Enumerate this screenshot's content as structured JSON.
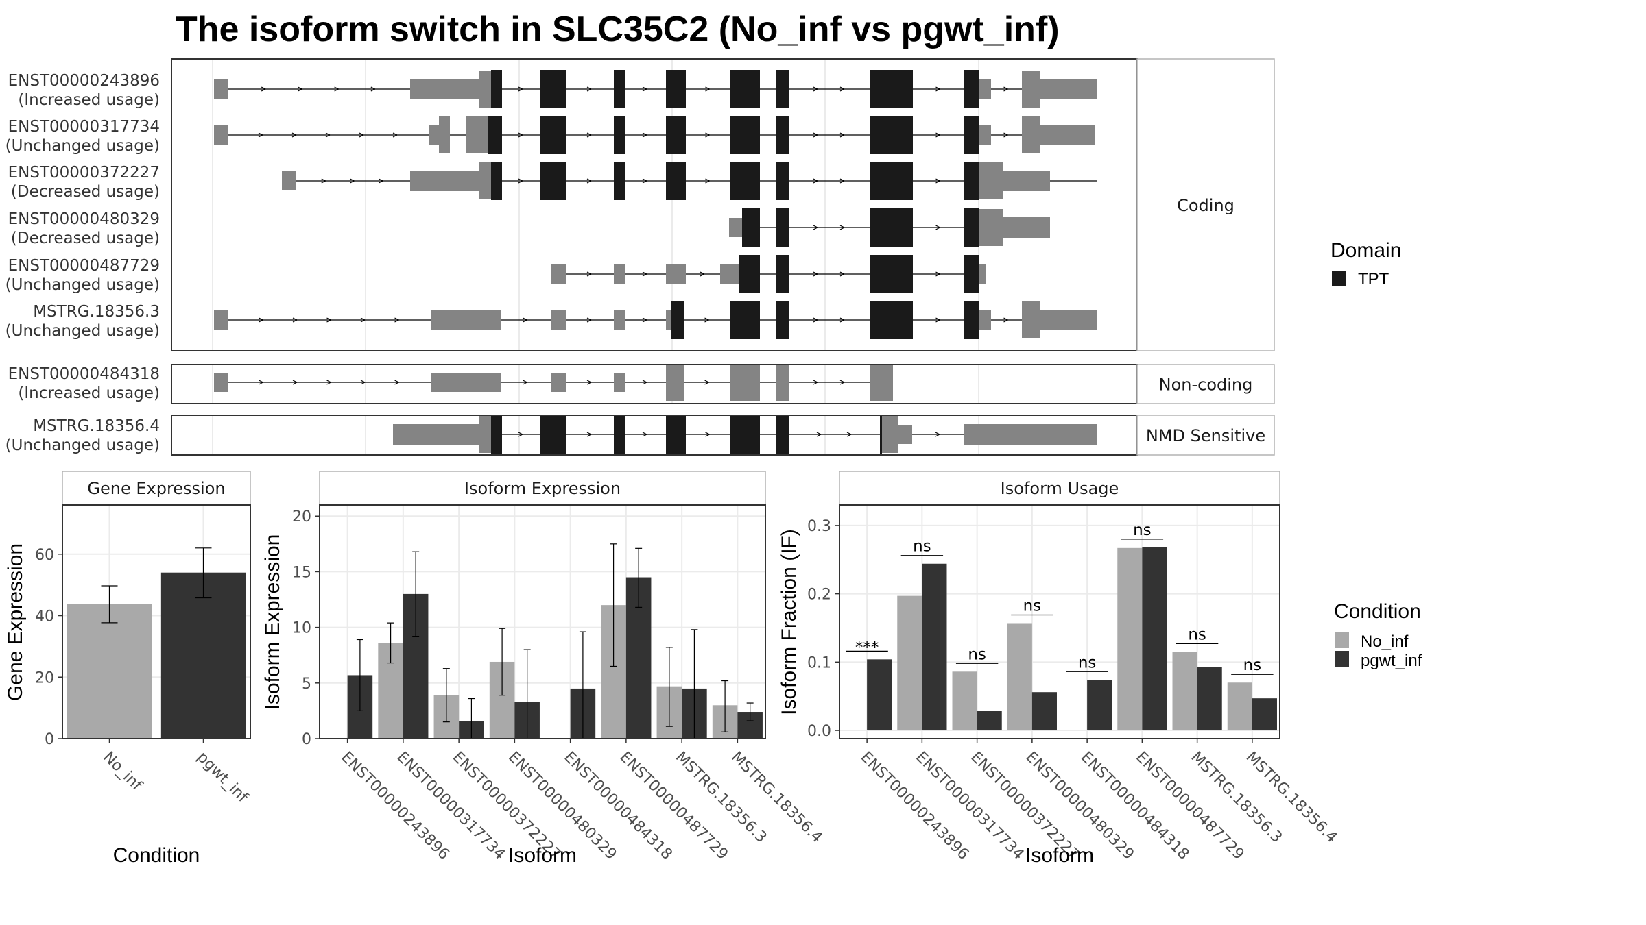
{
  "title": "The isoform switch in SLC35C2 (No_inf vs pgwt_inf)",
  "colors": {
    "exon": "#848484",
    "domain": "#1a1a1a",
    "no_inf": "#a9a9a9",
    "pgwt_inf": "#333333",
    "grid": "#ebebeb",
    "panel_border": "#333333"
  },
  "structure": {
    "groups": [
      {
        "label": "Coding",
        "isoforms": [
          {
            "id": "ENST00000243896",
            "usage": "(Increased usage)"
          },
          {
            "id": "ENST00000317734",
            "usage": "(Unchanged usage)"
          },
          {
            "id": "ENST00000372227",
            "usage": "(Decreased usage)"
          },
          {
            "id": "ENST00000480329",
            "usage": "(Decreased usage)"
          },
          {
            "id": "ENST00000487729",
            "usage": "(Unchanged usage)"
          },
          {
            "id": "MSTRG.18356.3",
            "usage": "(Unchanged usage)"
          }
        ]
      },
      {
        "label": "Non-coding",
        "isoforms": [
          {
            "id": "ENST00000484318",
            "usage": "(Increased usage)"
          }
        ]
      },
      {
        "label": "NMD Sensitive",
        "isoforms": [
          {
            "id": "MSTRG.18356.4",
            "usage": "(Unchanged usage)"
          }
        ]
      }
    ],
    "domain_legend": {
      "title": "Domain",
      "items": [
        {
          "label": "TPT",
          "color": "#1a1a1a"
        }
      ]
    }
  },
  "condition_legend": {
    "title": "Condition",
    "items": [
      {
        "label": "No_inf",
        "color": "#a9a9a9"
      },
      {
        "label": "pgwt_inf",
        "color": "#333333"
      }
    ]
  },
  "chart_data": [
    {
      "type": "bar",
      "panel": "Gene Expression",
      "xlabel": "Condition",
      "ylabel": "Gene Expression",
      "categories": [
        "No_inf",
        "pgwt_inf"
      ],
      "values": [
        43.7,
        54.0
      ],
      "error_low": [
        37.7,
        45.8
      ],
      "error_high": [
        49.7,
        62.0
      ],
      "ylim": [
        0,
        76
      ],
      "yticks": [
        "0",
        "20",
        "40",
        "60"
      ]
    },
    {
      "type": "bar",
      "panel": "Isoform Expression",
      "xlabel": "Isoform",
      "ylabel": "Isoform Expression",
      "categories": [
        "ENST00000243896",
        "ENST00000317734",
        "ENST00000372227",
        "ENST00000480329",
        "ENST00000484318",
        "ENST00000487729",
        "MSTRG.18356.3",
        "MSTRG.18356.4"
      ],
      "series": [
        {
          "name": "No_inf",
          "values": [
            0.0,
            8.6,
            3.9,
            6.9,
            0.0,
            12.0,
            4.7,
            3.0
          ],
          "error_low": [
            0.0,
            6.8,
            1.5,
            3.9,
            0.0,
            6.5,
            1.1,
            0.6
          ],
          "error_high": [
            0.0,
            10.4,
            6.3,
            9.9,
            0.0,
            17.5,
            8.2,
            5.2
          ]
        },
        {
          "name": "pgwt_inf",
          "values": [
            5.7,
            13.0,
            1.6,
            3.3,
            4.5,
            14.5,
            4.5,
            2.4
          ],
          "error_low": [
            2.5,
            9.2,
            0.0,
            0.0,
            0.0,
            11.8,
            0.0,
            1.6
          ],
          "error_high": [
            8.9,
            16.8,
            3.6,
            8.0,
            9.6,
            17.1,
            9.8,
            3.2
          ]
        }
      ],
      "ylim": [
        0,
        21
      ],
      "yticks": [
        "0",
        "5",
        "10",
        "15",
        "20"
      ]
    },
    {
      "type": "bar",
      "panel": "Isoform Usage",
      "xlabel": "Isoform",
      "ylabel": "Isoform Fraction (IF)",
      "categories": [
        "ENST00000243896",
        "ENST00000317734",
        "ENST00000372227",
        "ENST00000480329",
        "ENST00000484318",
        "ENST00000487729",
        "MSTRG.18356.3",
        "MSTRG.18356.4"
      ],
      "series": [
        {
          "name": "No_inf",
          "values": [
            0.0,
            0.197,
            0.086,
            0.157,
            0.0,
            0.267,
            0.115,
            0.07
          ]
        },
        {
          "name": "pgwt_inf",
          "values": [
            0.104,
            0.244,
            0.029,
            0.056,
            0.074,
            0.268,
            0.093,
            0.047
          ]
        }
      ],
      "significance": [
        "***",
        "ns",
        "ns",
        "ns",
        "ns",
        "ns",
        "ns",
        "ns"
      ],
      "ylim": [
        -0.012,
        0.33
      ],
      "yticks": [
        "0.0",
        "0.1",
        "0.2",
        "0.3"
      ]
    }
  ]
}
